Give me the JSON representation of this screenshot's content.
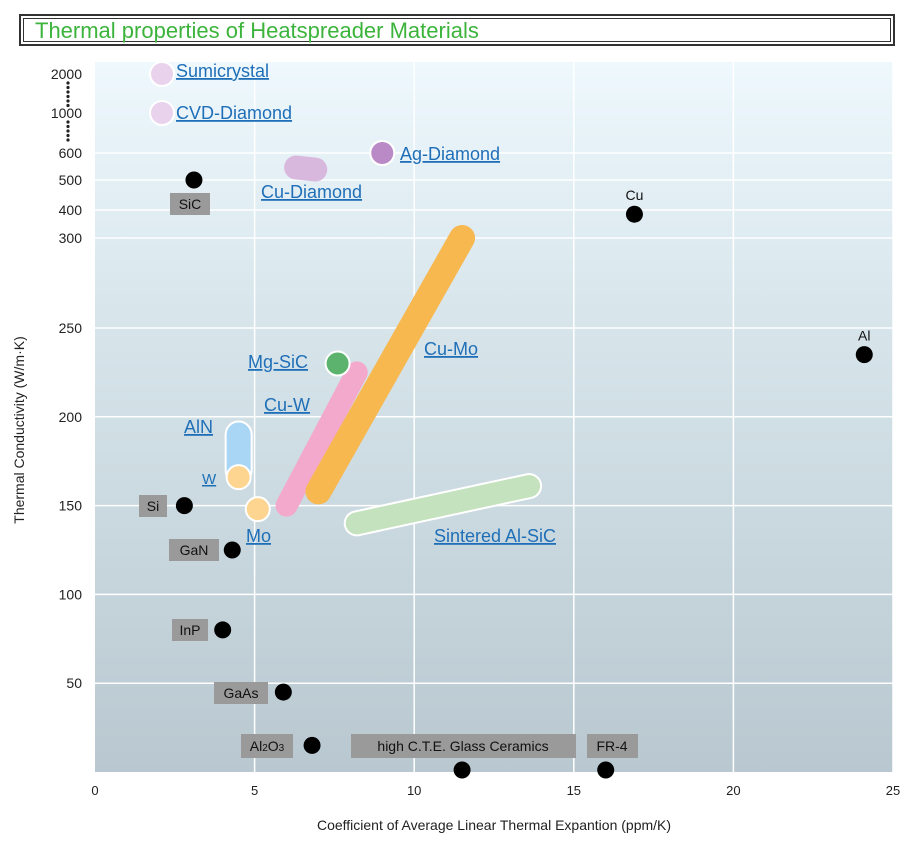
{
  "header": {
    "title": "Thermal properties of Heatspreader Materials"
  },
  "chart_data": {
    "type": "scatter",
    "title": "Thermal properties of Heatspreader Materials",
    "xlabel": "Coefficient of Average Linear Thermal Expantion (ppm/K)",
    "ylabel": "Thermal Conductivity (W/m·K)",
    "xlim": [
      0,
      25
    ],
    "x_ticks": [
      0,
      5,
      10,
      15,
      20,
      25
    ],
    "y_axis_note": "broken scale: linear 0-250, compressed 300-600, then 1000 and 2000",
    "y_ticks": [
      50,
      100,
      150,
      200,
      250,
      300,
      400,
      500,
      600,
      1000,
      2000
    ],
    "grid": true,
    "points": [
      {
        "name": "Cu",
        "x": 16.9,
        "y": 385,
        "label_pos": "above"
      },
      {
        "name": "Al",
        "x": 24.1,
        "y": 235,
        "label_pos": "above"
      },
      {
        "name": "SiC",
        "x": 3.1,
        "y": 500,
        "label_pos": "below"
      },
      {
        "name": "Si",
        "x": 2.8,
        "y": 150,
        "label_pos": "left"
      },
      {
        "name": "GaN",
        "x": 4.3,
        "y": 125,
        "label_pos": "left"
      },
      {
        "name": "InP",
        "x": 4.0,
        "y": 80,
        "label_pos": "left"
      },
      {
        "name": "GaAs",
        "x": 5.9,
        "y": 45,
        "label_pos": "left"
      },
      {
        "name": "Al",
        "sub": "2",
        "name2": "O",
        "sub2": "3",
        "x": 6.8,
        "y": 15,
        "label_pos": "left"
      },
      {
        "name": "high C.T.E. Glass Ceramics",
        "x": 11.5,
        "y": 0,
        "label_pos": "above"
      },
      {
        "name": "FR-4",
        "x": 16.0,
        "y": 0,
        "label_pos": "above"
      }
    ],
    "materials": [
      {
        "name": "Sumicrystal",
        "x": 2.1,
        "y": 2000,
        "color": "#e8d2ec"
      },
      {
        "name": "CVD-Diamond",
        "x": 2.1,
        "y": 1000,
        "color": "#e8d2ec"
      },
      {
        "name": "Ag-Diamond",
        "x": 9.0,
        "y": 600,
        "color": "#b98ac6"
      },
      {
        "name": "Cu-Diamond",
        "x_range": [
          6.3,
          6.9
        ],
        "y": 550,
        "color": "#d9b8de"
      },
      {
        "name": "Cu-Mo",
        "x_range": [
          7.0,
          11.5
        ],
        "y_range": [
          158,
          300
        ],
        "color": "#f7b850"
      },
      {
        "name": "Cu-W",
        "x_range": [
          6.0,
          8.2
        ],
        "y_range": [
          150,
          225
        ],
        "color": "#f3a9cb"
      },
      {
        "name": "Mg-SiC",
        "x": 7.6,
        "y": 230,
        "color": "#5cb36e"
      },
      {
        "name": "AlN",
        "x": 4.5,
        "y_range": [
          170,
          190
        ],
        "color": "#a9d6f5"
      },
      {
        "name": "W",
        "x": 4.5,
        "y": 166,
        "color": "#fdd591"
      },
      {
        "name": "Mo",
        "x": 5.1,
        "y": 148,
        "color": "#fdd591"
      },
      {
        "name": "Sintered Al-SiC",
        "x_range": [
          8.2,
          13.6
        ],
        "y_range": [
          140,
          161
        ],
        "color": "#c3e2bd"
      }
    ]
  }
}
